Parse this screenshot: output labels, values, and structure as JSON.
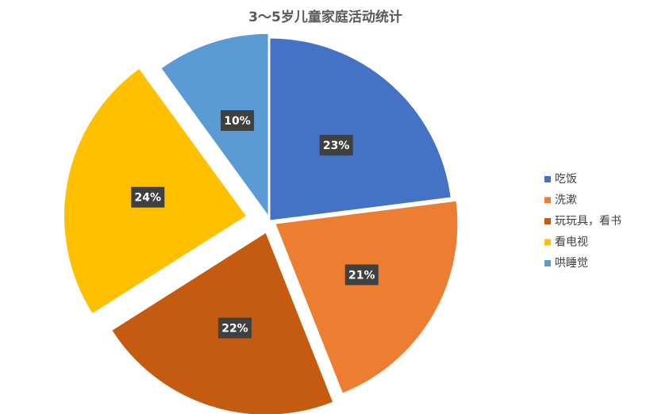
{
  "chart_data": {
    "type": "pie",
    "title": "3～5岁儿童家庭活动统计",
    "categories": [
      "吃饭",
      "洗漱",
      "玩玩具，看书",
      "看电视",
      "哄睡觉"
    ],
    "values": [
      23,
      21,
      22,
      24,
      10
    ],
    "value_labels": [
      "23%",
      "21%",
      "22%",
      "24%",
      "10%"
    ],
    "colors": [
      "#4472c4",
      "#ed7d31",
      "#c55a11",
      "#ffc000",
      "#5b9bd5"
    ],
    "legend": "right"
  }
}
